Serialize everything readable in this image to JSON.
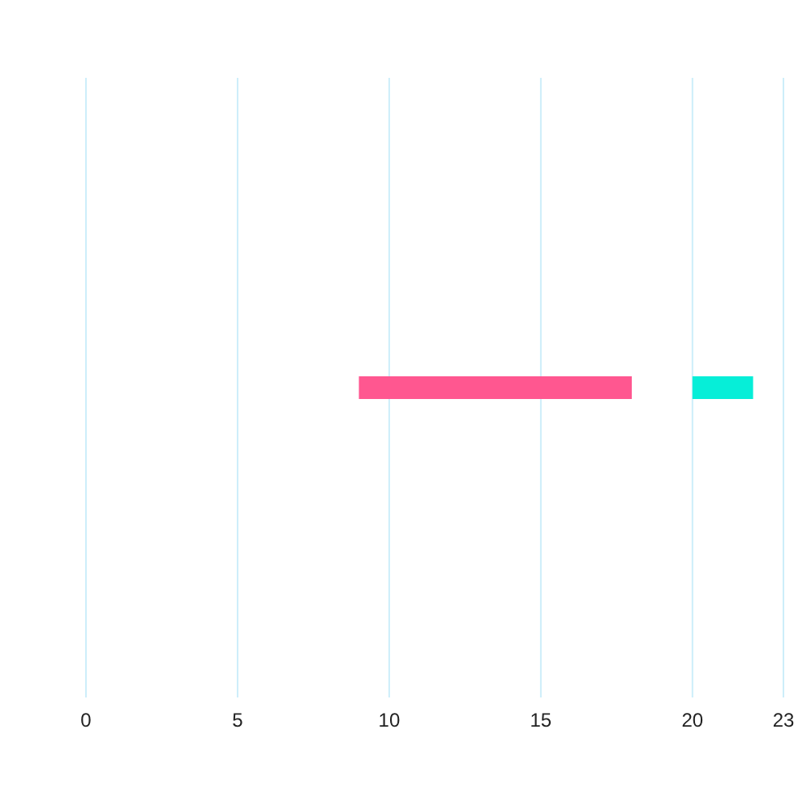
{
  "chart_data": {
    "type": "bar",
    "orientation": "horizontal",
    "categories": [
      null
    ],
    "series": [
      {
        "color": "#ff5790",
        "values": [
          9
        ],
        "base": [
          9
        ]
      },
      {
        "color": "#06eed8",
        "values": [
          2
        ],
        "base": [
          20
        ]
      }
    ],
    "xlim": [
      0,
      23
    ],
    "xticks": [
      0,
      5,
      10,
      15,
      20,
      23
    ],
    "grid": "x",
    "tick_labels": "x"
  }
}
